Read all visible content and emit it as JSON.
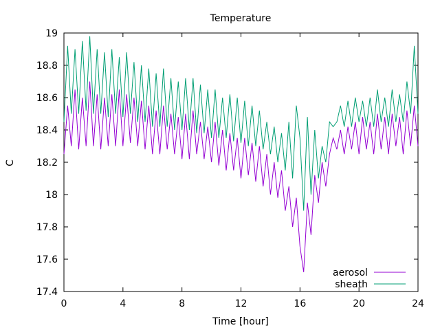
{
  "chart_data": {
    "type": "line",
    "title": "Temperature",
    "xlabel": "Time [hour]",
    "ylabel": "C",
    "xlim": [
      0,
      24
    ],
    "ylim": [
      17.4,
      19.0
    ],
    "xticks": [
      0,
      4,
      8,
      12,
      16,
      20,
      24
    ],
    "yticks": [
      17.4,
      17.6,
      17.8,
      18.0,
      18.2,
      18.4,
      18.6,
      18.8,
      19.0
    ],
    "ytick_labels": [
      "17.4",
      "17.6",
      "17.8",
      "18",
      "18.2",
      "18.4",
      "18.6",
      "18.8",
      "19"
    ],
    "grid": false,
    "legend_position": "bottom-right",
    "series": [
      {
        "name": "aerosol",
        "color": "#9400d3",
        "x": [
          0,
          0.25,
          0.5,
          0.75,
          1,
          1.25,
          1.5,
          1.75,
          2,
          2.25,
          2.5,
          2.75,
          3,
          3.25,
          3.5,
          3.75,
          4,
          4.25,
          4.5,
          4.75,
          5,
          5.25,
          5.5,
          5.75,
          6,
          6.25,
          6.5,
          6.75,
          7,
          7.25,
          7.5,
          7.75,
          8,
          8.25,
          8.5,
          8.75,
          9,
          9.25,
          9.5,
          9.75,
          10,
          10.25,
          10.5,
          10.75,
          11,
          11.25,
          11.5,
          11.75,
          12,
          12.25,
          12.5,
          12.75,
          13,
          13.25,
          13.5,
          13.75,
          14,
          14.25,
          14.5,
          14.75,
          15,
          15.25,
          15.5,
          15.75,
          16,
          16.25,
          16.5,
          16.75,
          17,
          17.25,
          17.5,
          17.75,
          18,
          18.25,
          18.5,
          18.75,
          19,
          19.25,
          19.5,
          19.75,
          20,
          20.25,
          20.5,
          20.75,
          21,
          21.25,
          21.5,
          21.75,
          22,
          22.25,
          22.5,
          22.75,
          23,
          23.25,
          23.5,
          23.75,
          24
        ],
        "values": [
          18.25,
          18.55,
          18.3,
          18.65,
          18.28,
          18.6,
          18.3,
          18.7,
          18.3,
          18.62,
          18.28,
          18.6,
          18.3,
          18.62,
          18.3,
          18.65,
          18.3,
          18.62,
          18.32,
          18.6,
          18.3,
          18.58,
          18.28,
          18.55,
          18.25,
          18.52,
          18.25,
          18.55,
          18.28,
          18.5,
          18.25,
          18.48,
          18.22,
          18.5,
          18.22,
          18.52,
          18.25,
          18.45,
          18.22,
          18.42,
          18.2,
          18.45,
          18.18,
          18.4,
          18.15,
          18.38,
          18.15,
          18.35,
          18.1,
          18.35,
          18.12,
          18.32,
          18.08,
          18.3,
          18.05,
          18.25,
          18.0,
          18.2,
          17.98,
          18.15,
          17.9,
          18.05,
          17.8,
          17.98,
          17.68,
          17.52,
          17.95,
          17.75,
          18.12,
          17.95,
          18.2,
          18.05,
          18.25,
          18.35,
          18.28,
          18.4,
          18.25,
          18.42,
          18.28,
          18.45,
          18.25,
          18.48,
          18.28,
          18.45,
          18.25,
          18.5,
          18.28,
          18.48,
          18.25,
          18.5,
          18.3,
          18.48,
          18.25,
          18.52,
          18.3,
          18.55,
          18.3
        ]
      },
      {
        "name": "sheath",
        "color": "#009e73",
        "x": [
          0,
          0.25,
          0.5,
          0.75,
          1,
          1.25,
          1.5,
          1.75,
          2,
          2.25,
          2.5,
          2.75,
          3,
          3.25,
          3.5,
          3.75,
          4,
          4.25,
          4.5,
          4.75,
          5,
          5.25,
          5.5,
          5.75,
          6,
          6.25,
          6.5,
          6.75,
          7,
          7.25,
          7.5,
          7.75,
          8,
          8.25,
          8.5,
          8.75,
          9,
          9.25,
          9.5,
          9.75,
          10,
          10.25,
          10.5,
          10.75,
          11,
          11.25,
          11.5,
          11.75,
          12,
          12.25,
          12.5,
          12.75,
          13,
          13.25,
          13.5,
          13.75,
          14,
          14.25,
          14.5,
          14.75,
          15,
          15.25,
          15.5,
          15.75,
          16,
          16.25,
          16.5,
          16.75,
          17,
          17.25,
          17.5,
          17.75,
          18,
          18.25,
          18.5,
          18.75,
          19,
          19.25,
          19.5,
          19.75,
          20,
          20.25,
          20.5,
          20.75,
          21,
          21.25,
          21.5,
          21.75,
          22,
          22.25,
          22.5,
          22.75,
          23,
          23.25,
          23.5,
          23.75,
          24
        ],
        "values": [
          18.45,
          18.92,
          18.5,
          18.9,
          18.5,
          18.95,
          18.52,
          18.98,
          18.5,
          18.9,
          18.5,
          18.88,
          18.48,
          18.9,
          18.5,
          18.85,
          18.48,
          18.88,
          18.5,
          18.82,
          18.45,
          18.8,
          18.45,
          18.78,
          18.42,
          18.75,
          18.42,
          18.78,
          18.42,
          18.72,
          18.4,
          18.7,
          18.4,
          18.72,
          18.4,
          18.72,
          18.38,
          18.68,
          18.38,
          18.65,
          18.35,
          18.65,
          18.35,
          18.6,
          18.35,
          18.62,
          18.33,
          18.6,
          18.32,
          18.58,
          18.3,
          18.55,
          18.3,
          18.52,
          18.28,
          18.45,
          18.25,
          18.42,
          18.2,
          18.38,
          18.15,
          18.45,
          18.1,
          18.55,
          18.35,
          17.9,
          18.48,
          18.0,
          18.4,
          18.1,
          18.3,
          18.2,
          18.45,
          18.42,
          18.45,
          18.55,
          18.42,
          18.58,
          18.42,
          18.6,
          18.45,
          18.58,
          18.42,
          18.6,
          18.42,
          18.65,
          18.45,
          18.6,
          18.42,
          18.65,
          18.45,
          18.62,
          18.45,
          18.7,
          18.5,
          18.92,
          18.5
        ]
      }
    ]
  }
}
